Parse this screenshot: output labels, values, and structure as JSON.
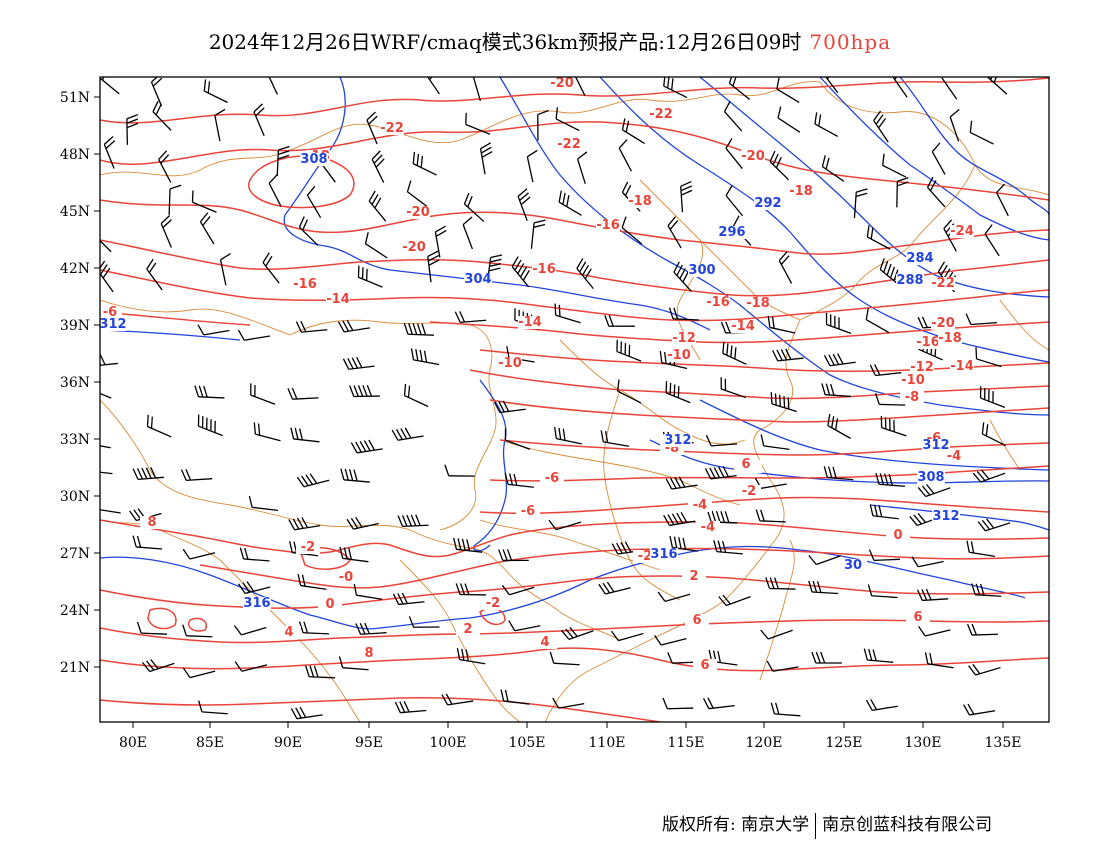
{
  "title": {
    "main": "2024年12月26日WRF/cmaq模式36km预报产品:12月26日09时",
    "level": "700hpa"
  },
  "axes": {
    "lat_labels": [
      "51N",
      "48N",
      "45N",
      "42N",
      "39N",
      "36N",
      "33N",
      "30N",
      "27N",
      "24N",
      "21N"
    ],
    "lon_labels": [
      "80E",
      "85E",
      "90E",
      "95E",
      "100E",
      "105E",
      "110E",
      "115E",
      "120E",
      "125E",
      "130E",
      "135E"
    ]
  },
  "colors": {
    "temperature": "#e8443a",
    "height": "#2244dd",
    "border": "#d98b3a",
    "wind": "#000000"
  },
  "temperature_labels": [
    "-20",
    "-22",
    "-18",
    "-22",
    "-22",
    "-20",
    "-20",
    "-18",
    "-16",
    "-20",
    "-24",
    "-18",
    "-16",
    "-16",
    "-14",
    "-22",
    "-6",
    "-16",
    "-18",
    "-14",
    "-20",
    "-12",
    "-14",
    "-10",
    "-16",
    "-18",
    "-12",
    "-10",
    "-14",
    "-10",
    "-8",
    "-6",
    "-4",
    "-8",
    "-6",
    "-4",
    "-6",
    "-2",
    "-4",
    "-2",
    "-4",
    "0",
    "-0",
    "-2",
    "2",
    "0",
    "-2",
    "4",
    "2",
    "4",
    "6",
    "6",
    "6",
    "8",
    "8",
    "6"
  ],
  "height_labels": [
    "308",
    "312",
    "292",
    "296",
    "300",
    "284",
    "288",
    "304",
    "312",
    "308",
    "316",
    "312",
    "312",
    "316",
    "30"
  ],
  "footer": {
    "copyright": "版权所有: 南京大学",
    "company": "南京创蓝科技有限公司"
  }
}
